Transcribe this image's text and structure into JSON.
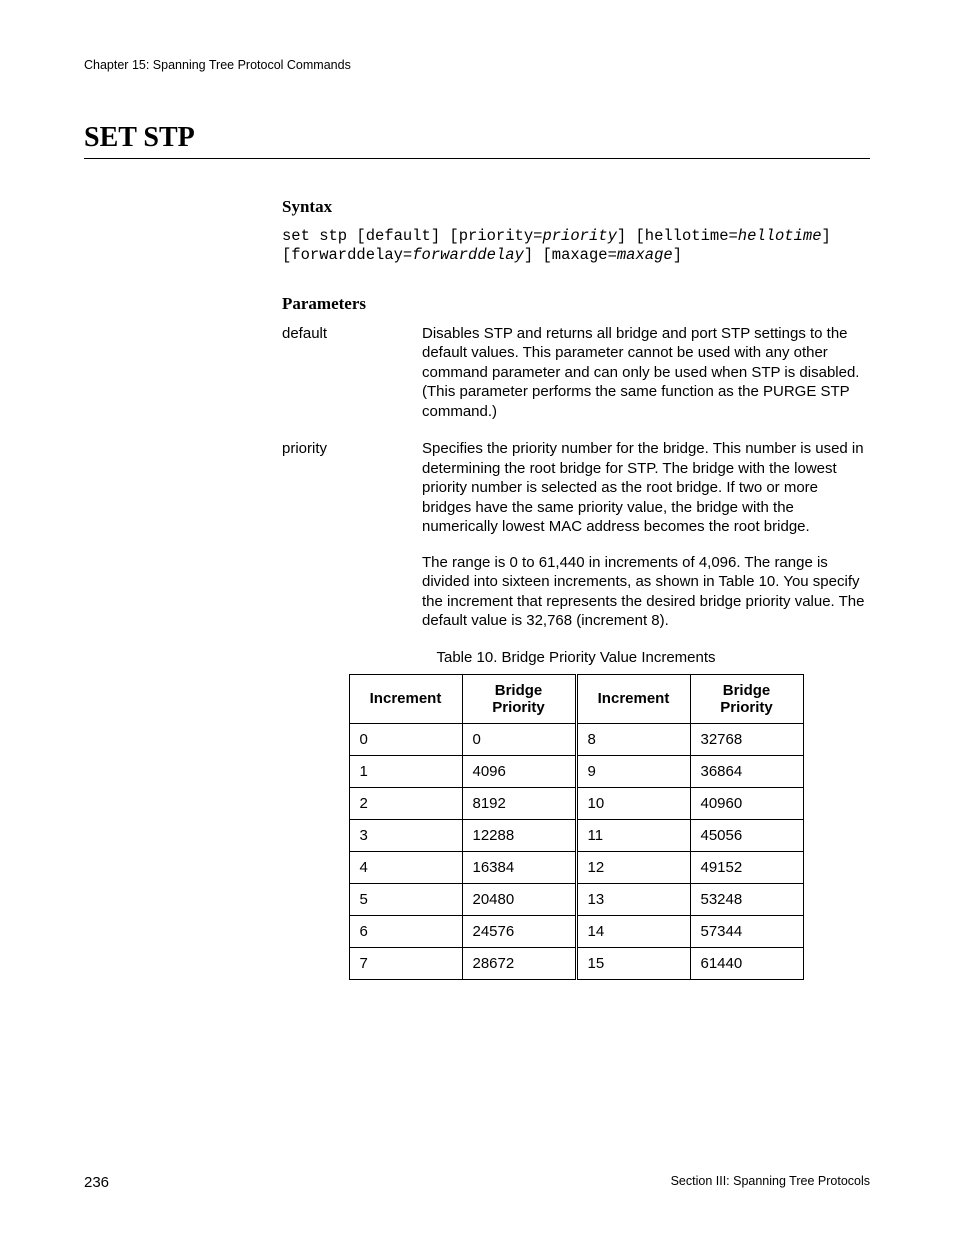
{
  "header": {
    "chapter": "Chapter 15: Spanning Tree Protocol Commands"
  },
  "title": "SET STP",
  "syntax": {
    "heading": "Syntax",
    "tokens": [
      {
        "t": "set stp [default] [priority=",
        "i": false
      },
      {
        "t": "priority",
        "i": true
      },
      {
        "t": "] [hellotime=",
        "i": false
      },
      {
        "t": "hellotime",
        "i": true
      },
      {
        "t": "]",
        "i": false
      }
    ],
    "tokens2": [
      {
        "t": "[forwarddelay=",
        "i": false
      },
      {
        "t": "forwarddelay",
        "i": true
      },
      {
        "t": "] [maxage=",
        "i": false
      },
      {
        "t": "maxage",
        "i": true
      },
      {
        "t": "]",
        "i": false
      }
    ]
  },
  "parameters": {
    "heading": "Parameters",
    "items": [
      {
        "name": "default",
        "desc": [
          "Disables STP and returns all bridge and port STP settings to the default values. This parameter cannot be used with any other command parameter and can only be used when STP is disabled. (This parameter performs the same function as the PURGE STP command.)"
        ]
      },
      {
        "name": "priority",
        "desc": [
          "Specifies the priority number for the bridge. This number is used in determining the root bridge for STP. The bridge with the lowest priority number is selected as the root bridge. If two or more bridges have the same priority value, the bridge with the numerically lowest MAC address becomes the root bridge.",
          "The range is 0 to 61,440 in increments of 4,096. The range is divided into sixteen increments, as shown in Table 10. You specify the increment that represents the desired bridge priority value. The default value is 32,768 (increment 8)."
        ]
      }
    ]
  },
  "table": {
    "caption": "Table 10. Bridge Priority Value Increments",
    "headers": [
      "Increment",
      "Bridge Priority",
      "Increment",
      "Bridge Priority"
    ],
    "rows": [
      [
        "0",
        "0",
        "8",
        "32768"
      ],
      [
        "1",
        "4096",
        "9",
        "36864"
      ],
      [
        "2",
        "8192",
        "10",
        "40960"
      ],
      [
        "3",
        "12288",
        "11",
        "45056"
      ],
      [
        "4",
        "16384",
        "12",
        "49152"
      ],
      [
        "5",
        "20480",
        "13",
        "53248"
      ],
      [
        "6",
        "24576",
        "14",
        "57344"
      ],
      [
        "7",
        "28672",
        "15",
        "61440"
      ]
    ]
  },
  "footer": {
    "page": "236",
    "section": "Section III: Spanning Tree Protocols"
  }
}
